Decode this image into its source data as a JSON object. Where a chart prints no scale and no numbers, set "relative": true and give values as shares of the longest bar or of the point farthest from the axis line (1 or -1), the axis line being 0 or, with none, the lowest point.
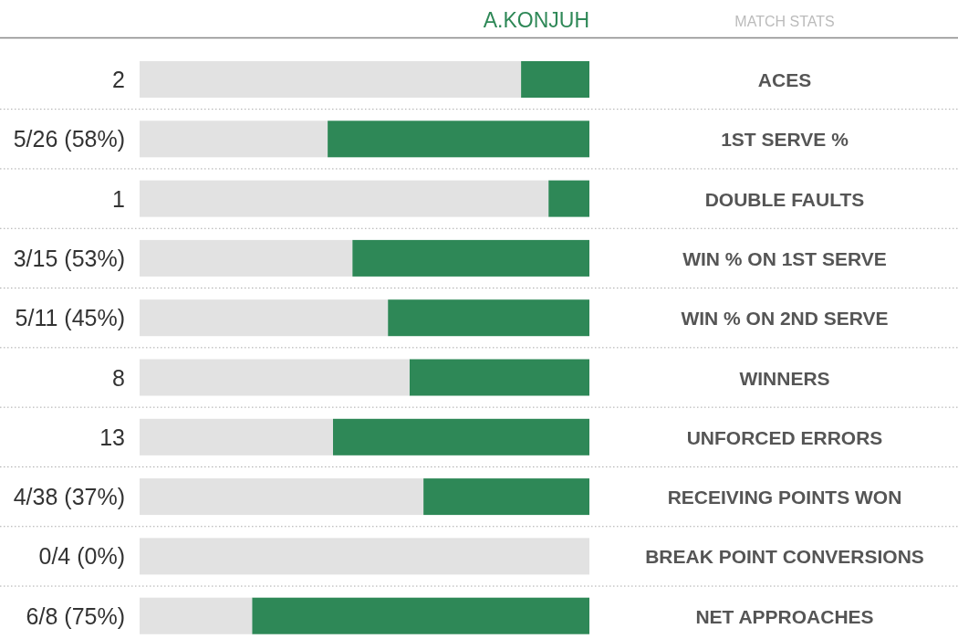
{
  "chart_data": {
    "type": "bar",
    "orientation": "horizontal",
    "stacked": true,
    "relative": true,
    "title": "MATCH STATS",
    "categories": [
      "ACES",
      "1ST SERVE %",
      "DOUBLE FAULTS",
      "WIN % ON 1ST SERVE",
      "WIN % ON 2ND SERVE",
      "WINNERS",
      "UNFORCED ERRORS",
      "RECEIVING POINTS WON",
      "BREAK POINT CONVERSIONS",
      "NET APPROACHES"
    ],
    "series": [
      {
        "name": "A.KONJUH",
        "color": "#2e8857",
        "values": [
          0.152,
          0.582,
          0.091,
          0.527,
          0.448,
          0.4,
          0.57,
          0.369,
          0,
          0.75
        ]
      },
      {
        "color": "#e2e2e2",
        "values": [
          0.848,
          0.418,
          0.909,
          0.473,
          0.552,
          0.6,
          0.43,
          0.631,
          1,
          0.25
        ]
      }
    ],
    "annotations": [
      "2",
      "5/26 (58%)",
      "1",
      "3/15 (53%)",
      "5/11 (45%)",
      "8",
      "13",
      "4/38 (37%)",
      "0/4 (0%)",
      "6/8 (75%)"
    ]
  }
}
